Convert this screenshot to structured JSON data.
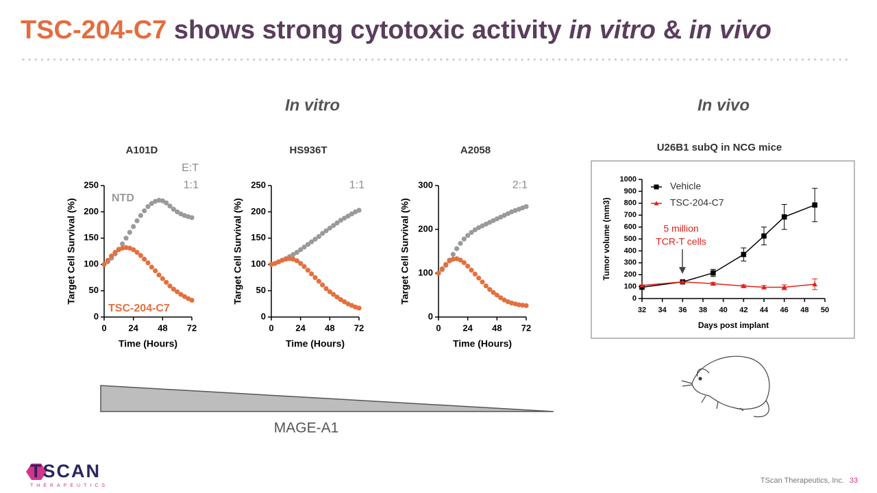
{
  "title": [
    "TSC-204-C7",
    "shows strong cytotoxic activity",
    "in vitro",
    "&",
    "in vivo"
  ],
  "sections": [
    "In vitro",
    "In vivo"
  ],
  "gradient_label": "MAGE-A1",
  "footer": {
    "company": "TScan Therapeutics, Inc.",
    "page": "33"
  },
  "logo": {
    "name": "TSCAN",
    "subtitle": "THERAPEUTICS"
  },
  "chart_data": [
    {
      "type": "line",
      "title": "A101D",
      "x_label": "Time (Hours)",
      "y_label": "Target Cell Survival (%)",
      "annotations": [
        "E:T",
        "1:1"
      ],
      "annotation_color": "#8c8c8c",
      "marker": "circle",
      "connect": false,
      "xlim": [
        0,
        72
      ],
      "xticks": [
        0,
        24,
        48,
        72
      ],
      "ylim": [
        0,
        250
      ],
      "yticks": [
        0,
        50,
        100,
        150,
        200,
        250
      ],
      "x": [
        0,
        3,
        6,
        9,
        12,
        15,
        18,
        21,
        24,
        27,
        30,
        33,
        36,
        39,
        42,
        45,
        48,
        51,
        54,
        57,
        60,
        63,
        66,
        69,
        72
      ],
      "series": [
        {
          "name": "NTD",
          "color": "#9a9a9a",
          "values": [
            100,
            105,
            112,
            120,
            129,
            139,
            150,
            161,
            172,
            183,
            193,
            202,
            210,
            216,
            220,
            222,
            221,
            217,
            211,
            205,
            200,
            196,
            193,
            191,
            189
          ]
        },
        {
          "name": "TSC-204-C7",
          "color": "#e3703f",
          "values": [
            100,
            108,
            116,
            123,
            128,
            131,
            132,
            131,
            128,
            123,
            117,
            110,
            103,
            95,
            88,
            80,
            73,
            66,
            59,
            53,
            48,
            43,
            39,
            35,
            32
          ]
        }
      ]
    },
    {
      "type": "line",
      "title": "HS936T",
      "x_label": "Time (Hours)",
      "y_label": "Target Cell Survival (%)",
      "annotations": [
        "1:1"
      ],
      "annotation_color": "#8c8c8c",
      "marker": "circle",
      "connect": false,
      "xlim": [
        0,
        72
      ],
      "xticks": [
        0,
        24,
        48,
        72
      ],
      "ylim": [
        0,
        250
      ],
      "yticks": [
        0,
        50,
        100,
        150,
        200,
        250
      ],
      "x": [
        0,
        3,
        6,
        9,
        12,
        15,
        18,
        21,
        24,
        27,
        30,
        33,
        36,
        39,
        42,
        45,
        48,
        51,
        54,
        57,
        60,
        63,
        66,
        69,
        72
      ],
      "series": [
        {
          "color": "#9a9a9a",
          "values": [
            100,
            102,
            105,
            108,
            111,
            115,
            119,
            123,
            128,
            133,
            138,
            143,
            148,
            153,
            159,
            164,
            169,
            174,
            179,
            184,
            188,
            192,
            196,
            200,
            203
          ]
        },
        {
          "color": "#e3703f",
          "values": [
            100,
            102,
            105,
            108,
            110,
            111,
            110,
            107,
            102,
            96,
            89,
            82,
            75,
            68,
            61,
            54,
            48,
            43,
            38,
            33,
            29,
            25,
            22,
            19,
            17
          ]
        }
      ]
    },
    {
      "type": "line",
      "title": "A2058",
      "x_label": "Time (Hours)",
      "y_label": "Target Cell Survival (%)",
      "annotations": [
        "2:1"
      ],
      "annotation_color": "#8c8c8c",
      "marker": "circle",
      "connect": false,
      "xlim": [
        0,
        72
      ],
      "xticks": [
        0,
        24,
        48,
        72
      ],
      "ylim": [
        0,
        300
      ],
      "yticks": [
        0,
        100,
        200,
        300
      ],
      "x": [
        0,
        3,
        6,
        9,
        12,
        15,
        18,
        21,
        24,
        27,
        30,
        33,
        36,
        39,
        42,
        45,
        48,
        51,
        54,
        57,
        60,
        63,
        66,
        69,
        72
      ],
      "series": [
        {
          "color": "#9a9a9a",
          "values": [
            100,
            108,
            118,
            130,
            143,
            156,
            168,
            178,
            186,
            193,
            199,
            204,
            208,
            212,
            216,
            220,
            224,
            228,
            232,
            236,
            240,
            243,
            246,
            249,
            252
          ]
        },
        {
          "color": "#e3703f",
          "values": [
            100,
            110,
            120,
            128,
            132,
            133,
            130,
            124,
            116,
            107,
            98,
            89,
            80,
            71,
            63,
            56,
            50,
            44,
            39,
            35,
            32,
            30,
            28,
            27,
            26
          ]
        }
      ]
    },
    {
      "type": "line",
      "title": "U26B1 subQ in NCG mice",
      "x_label": "Days post implant",
      "y_label": "Tumor volume (mm3)",
      "annotations": [
        "5 million",
        "TCR-T cells"
      ],
      "annotation_color": "#e0201b",
      "connect": true,
      "legend": "top-left",
      "xlim": [
        32,
        50
      ],
      "xticks": [
        32,
        34,
        36,
        38,
        40,
        42,
        44,
        46,
        48,
        50
      ],
      "ylim": [
        0,
        1000
      ],
      "yticks": [
        0,
        100,
        200,
        300,
        400,
        500,
        600,
        700,
        800,
        900,
        1000
      ],
      "x": [
        32,
        36,
        39,
        42,
        44,
        46,
        49
      ],
      "series": [
        {
          "name": "Vehicle",
          "color": "#000000",
          "marker": "square",
          "values": [
            95,
            140,
            215,
            370,
            525,
            685,
            785
          ],
          "errors": [
            0,
            0,
            30,
            55,
            75,
            105,
            140
          ]
        },
        {
          "name": "TSC-204-C7",
          "color": "#e0201b",
          "marker": "triangle",
          "values": [
            110,
            140,
            125,
            105,
            95,
            95,
            120
          ],
          "errors": [
            0,
            0,
            10,
            10,
            15,
            20,
            45
          ]
        }
      ]
    }
  ]
}
